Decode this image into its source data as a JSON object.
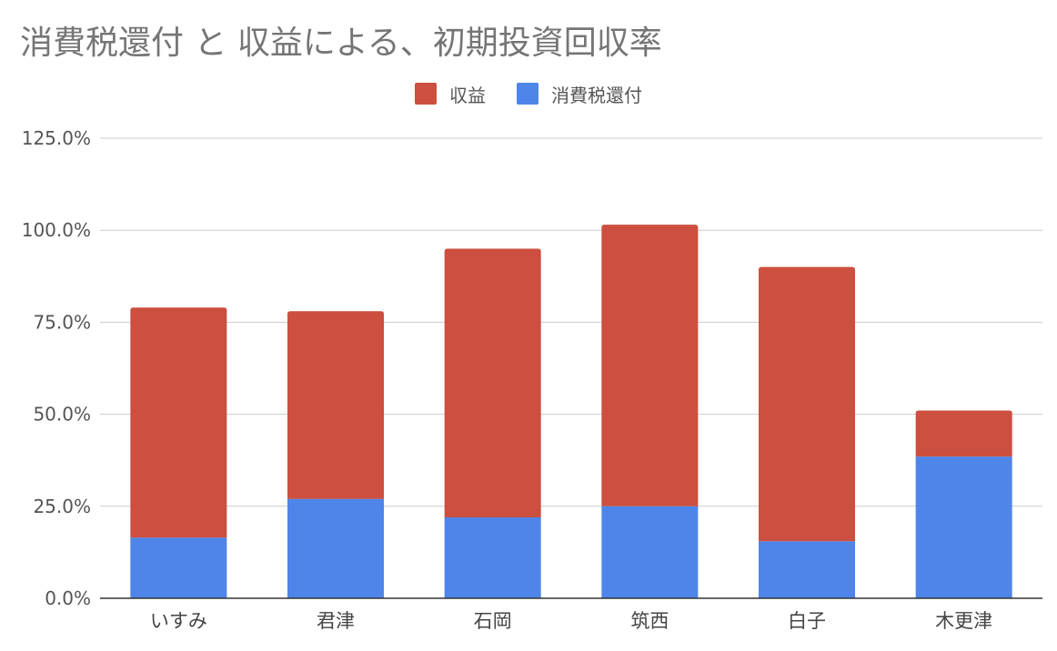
{
  "chart_data": {
    "type": "bar",
    "stacked": true,
    "title": "消費税還付 と 収益による、初期投資回収率",
    "categories": [
      "いすみ",
      "君津",
      "石岡",
      "筑西",
      "白子",
      "木更津"
    ],
    "series": [
      {
        "name": "消費税還付",
        "color": "#4f85e8",
        "values": [
          16.5,
          27.0,
          22.0,
          25.0,
          15.5,
          38.5
        ]
      },
      {
        "name": "収益",
        "color": "#cc4f3f",
        "values": [
          62.5,
          51.0,
          73.0,
          76.5,
          74.5,
          12.5
        ]
      }
    ],
    "legend_order": [
      "収益",
      "消費税還付"
    ],
    "legend_position": "top-center",
    "ylim": [
      0,
      125
    ],
    "yticks": [
      "0.0%",
      "25.0%",
      "50.0%",
      "75.0%",
      "100.0%",
      "125.0%"
    ],
    "grid": true
  }
}
